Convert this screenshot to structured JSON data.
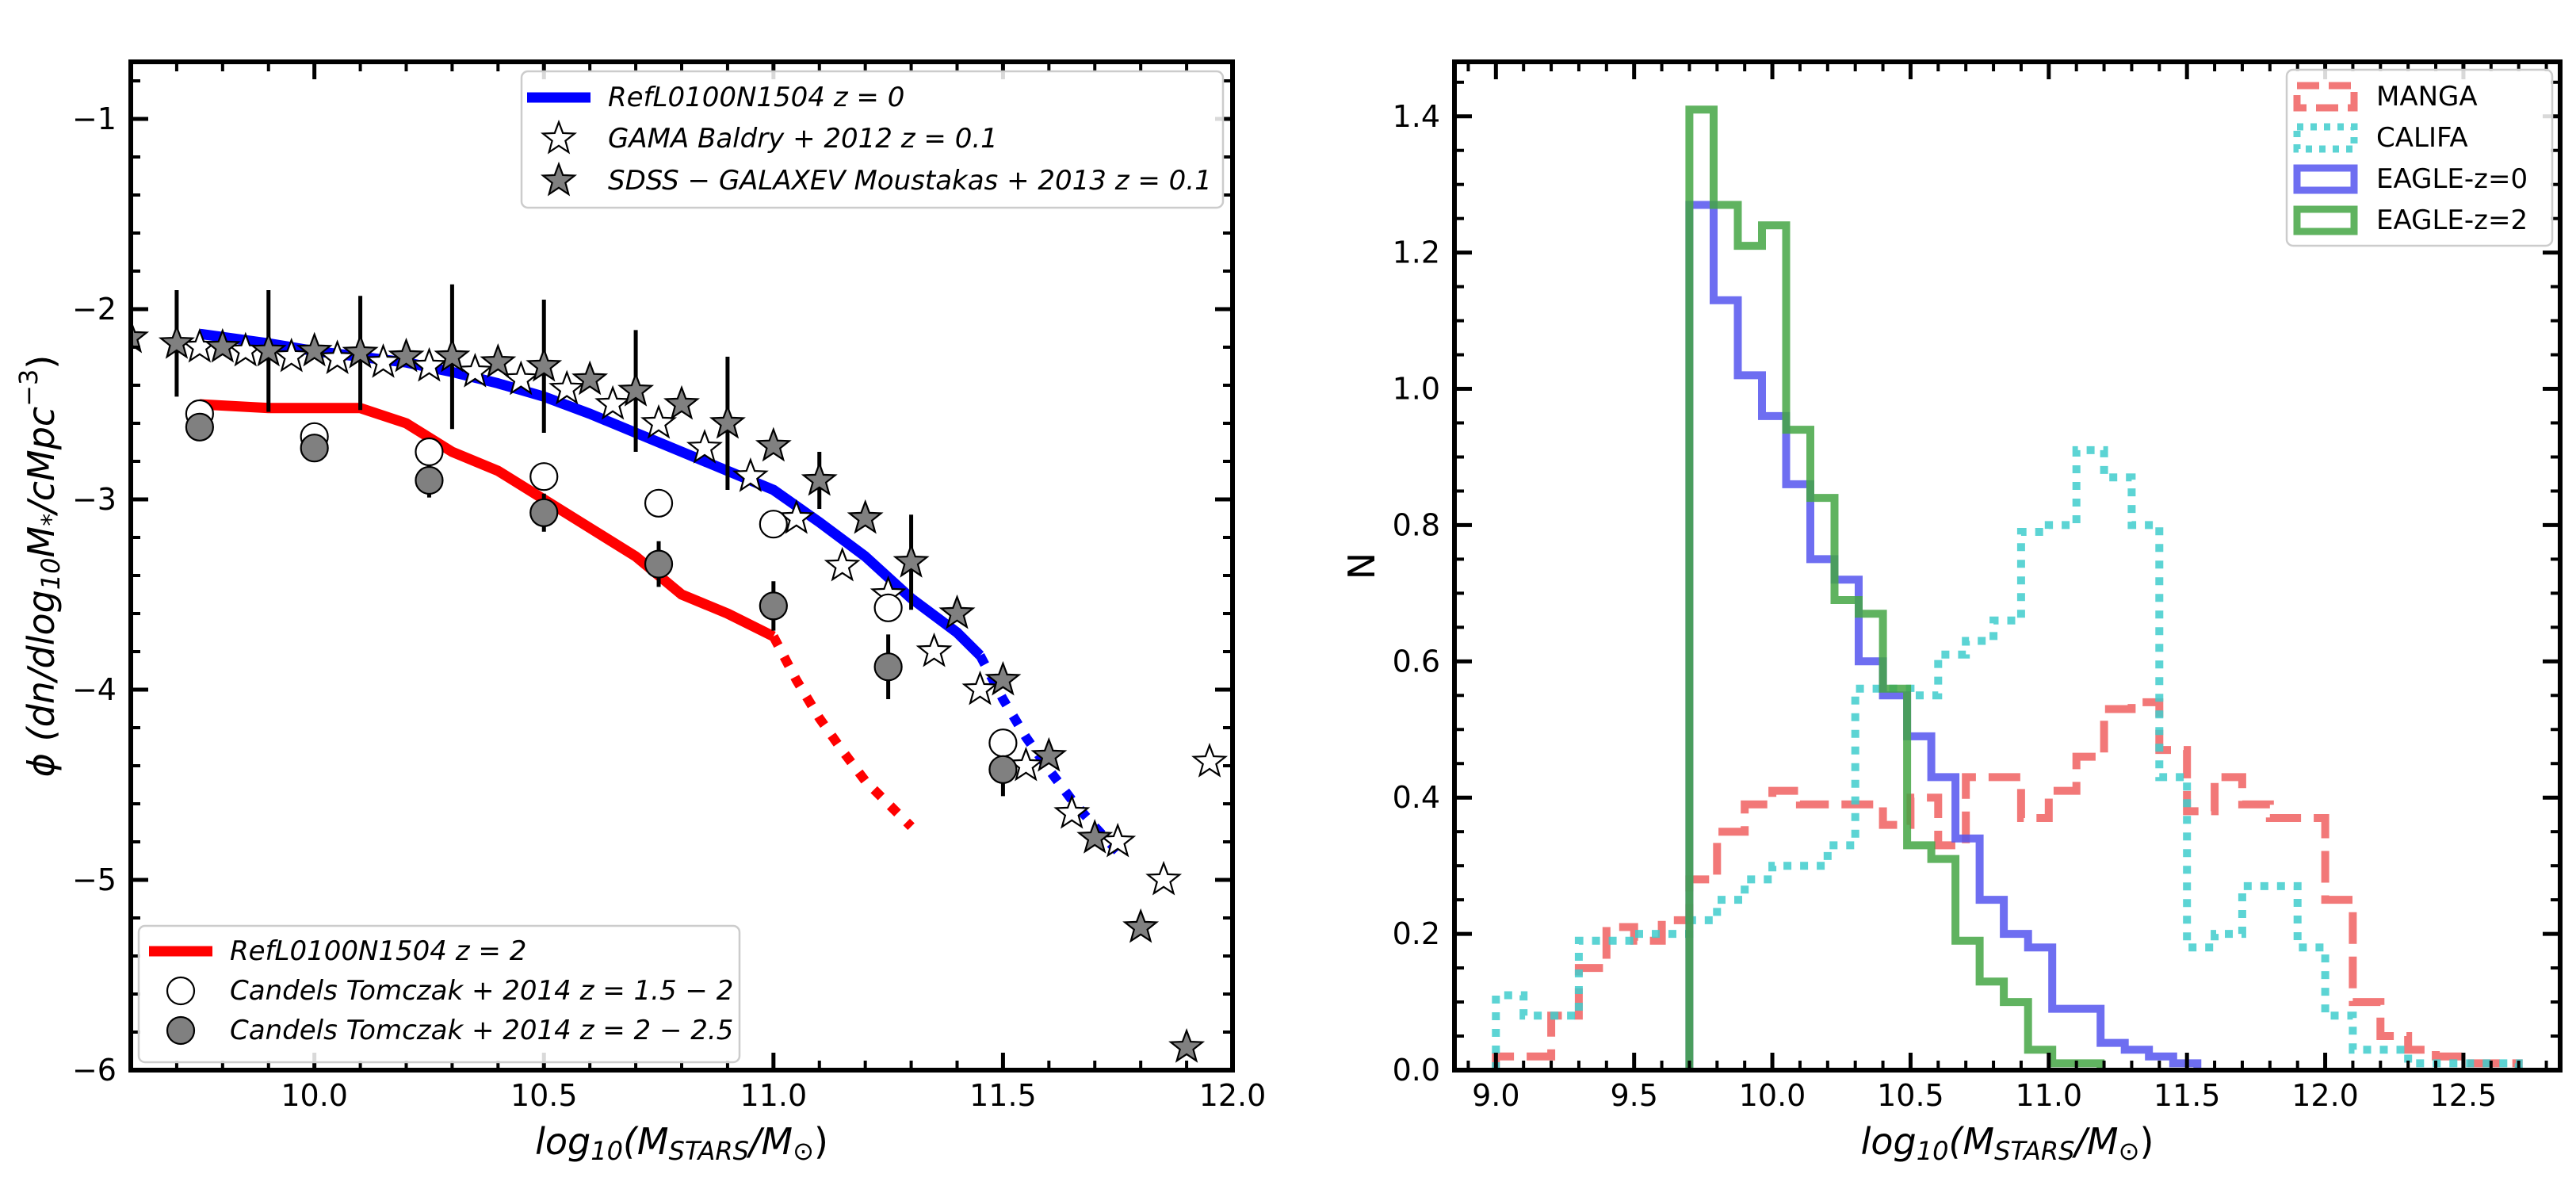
{
  "chart_data": [
    {
      "type": "line",
      "panel": "left",
      "xlabel": "log10(M_STARS/M_sun)",
      "ylabel": "phi (dn/dlog10 M*/cMpc^-3)",
      "xlim": [
        9.6,
        12.0
      ],
      "ylim": [
        -6,
        -0.7
      ],
      "xticks": [
        10.0,
        10.5,
        11.0,
        11.5,
        12.0
      ],
      "xtick_labels": [
        "10.0",
        "10.5",
        "11.0",
        "11.5",
        "12.0"
      ],
      "yticks": [
        -1,
        -2,
        -3,
        -4,
        -5,
        -6
      ],
      "ytick_labels": [
        "−1",
        "−2",
        "−3",
        "−4",
        "−5",
        "−6"
      ],
      "series": [
        {
          "name": "RefL0100N1504 z=0",
          "label_italic": "RefL0100N1504",
          "label_rest": " z = 0",
          "color": "#0000ff",
          "style": "line",
          "x": [
            9.75,
            9.9,
            10.0,
            10.1,
            10.2,
            10.3,
            10.4,
            10.5,
            10.6,
            10.7,
            10.8,
            10.9,
            11.0,
            11.1,
            11.2,
            11.3,
            11.4,
            11.45
          ],
          "y": [
            -2.13,
            -2.18,
            -2.22,
            -2.25,
            -2.28,
            -2.33,
            -2.39,
            -2.46,
            -2.55,
            -2.65,
            -2.75,
            -2.85,
            -2.95,
            -3.12,
            -3.3,
            -3.52,
            -3.7,
            -3.82
          ]
        },
        {
          "name": "RefL0100N1504 z=0 extension",
          "color": "#0000ff",
          "style": "dotted",
          "x": [
            11.45,
            11.5,
            11.55,
            11.6,
            11.65,
            11.7,
            11.75
          ],
          "y": [
            -3.82,
            -4.05,
            -4.25,
            -4.42,
            -4.58,
            -4.72,
            -4.85
          ]
        },
        {
          "name": "RefL0100N1504 z=2",
          "label_italic": "RefL0100N1504",
          "label_rest": " z = 2",
          "color": "#ff0000",
          "style": "line",
          "x": [
            9.75,
            9.9,
            10.0,
            10.1,
            10.2,
            10.3,
            10.4,
            10.5,
            10.6,
            10.7,
            10.8,
            10.9,
            11.0
          ],
          "y": [
            -2.5,
            -2.52,
            -2.52,
            -2.52,
            -2.6,
            -2.75,
            -2.85,
            -3.0,
            -3.15,
            -3.3,
            -3.5,
            -3.6,
            -3.72
          ]
        },
        {
          "name": "RefL0100N1504 z=2 extension",
          "color": "#ff0000",
          "style": "dotted",
          "x": [
            11.0,
            11.05,
            11.1,
            11.15,
            11.2,
            11.25,
            11.3
          ],
          "y": [
            -3.72,
            -3.95,
            -4.15,
            -4.32,
            -4.48,
            -4.6,
            -4.72
          ]
        },
        {
          "name": "GAMA Baldry+2012 z=0.1",
          "label_italic": "GAMA Baldry + 2012",
          "label_rest": " z = 0.1",
          "marker": "star-open",
          "x": [
            9.75,
            9.85,
            9.95,
            10.05,
            10.15,
            10.25,
            10.35,
            10.45,
            10.55,
            10.65,
            10.75,
            10.85,
            10.95,
            11.05,
            11.15,
            11.25,
            11.35,
            11.45,
            11.55,
            11.65,
            11.75,
            11.85,
            11.95
          ],
          "y": [
            -2.2,
            -2.22,
            -2.25,
            -2.26,
            -2.28,
            -2.3,
            -2.33,
            -2.37,
            -2.42,
            -2.5,
            -2.6,
            -2.73,
            -2.88,
            -3.1,
            -3.35,
            -3.5,
            -3.8,
            -4.0,
            -4.4,
            -4.65,
            -4.8,
            -5.0,
            -4.38
          ]
        },
        {
          "name": "SDSS-GALAXEV Moustakas+2013 z=0.1",
          "label_italic": "SDSS − GALAXEV Moustakas + 2013",
          "label_rest": " z = 0.1",
          "marker": "star-filled",
          "x": [
            9.6,
            9.7,
            9.8,
            9.9,
            10.0,
            10.1,
            10.2,
            10.3,
            10.4,
            10.5,
            10.6,
            10.7,
            10.8,
            10.9,
            11.0,
            11.1,
            11.2,
            11.3,
            11.4,
            11.5,
            11.6,
            11.7,
            11.8,
            11.9
          ],
          "y": [
            -2.15,
            -2.18,
            -2.2,
            -2.22,
            -2.22,
            -2.23,
            -2.25,
            -2.25,
            -2.28,
            -2.3,
            -2.37,
            -2.43,
            -2.5,
            -2.6,
            -2.72,
            -2.9,
            -3.1,
            -3.33,
            -3.6,
            -3.95,
            -4.35,
            -4.78,
            -5.25,
            -5.88
          ],
          "yerr": [
            0,
            0.28,
            0,
            0.32,
            0,
            0.3,
            0,
            0.38,
            0,
            0.35,
            0,
            0.32,
            0,
            0.35,
            0,
            0.15,
            0,
            0.25,
            0,
            0,
            0,
            0,
            0,
            0
          ]
        },
        {
          "name": "Candels Tomczak+2014 z=1.5-2",
          "label_italic": "Candels Tomczak + 2014",
          "label_rest": " z = 1.5 − 2",
          "marker": "circle-open",
          "x": [
            9.75,
            10.0,
            10.25,
            10.5,
            10.75,
            11.0,
            11.25,
            11.5
          ],
          "y": [
            -2.55,
            -2.67,
            -2.75,
            -2.88,
            -3.02,
            -3.13,
            -3.57,
            -4.28
          ]
        },
        {
          "name": "Candels Tomczak+2014 z=2-2.5",
          "label_italic": "Candels Tomczak + 2014",
          "label_rest": " z = 2 − 2.5",
          "marker": "circle-filled",
          "x": [
            9.75,
            10.0,
            10.25,
            10.5,
            10.75,
            11.0,
            11.25,
            11.5
          ],
          "y": [
            -2.62,
            -2.73,
            -2.9,
            -3.07,
            -3.34,
            -3.56,
            -3.88,
            -4.42
          ],
          "yerr": [
            0,
            0,
            0.09,
            0.1,
            0.12,
            0.13,
            0.17,
            0.14
          ]
        }
      ],
      "legend_upper": "upper-right",
      "legend_lower": "lower-left"
    },
    {
      "type": "histogram",
      "panel": "right",
      "xlabel": "log10(M_STARS/M_sun)",
      "ylabel": "N",
      "xlim": [
        8.85,
        12.85
      ],
      "ylim": [
        0,
        1.48
      ],
      "xticks": [
        9.0,
        9.5,
        10.0,
        10.5,
        11.0,
        11.5,
        12.0,
        12.5
      ],
      "xtick_labels": [
        "9.0",
        "9.5",
        "10.0",
        "10.5",
        "11.0",
        "11.5",
        "12.0",
        "12.5"
      ],
      "yticks": [
        0.0,
        0.2,
        0.4,
        0.6,
        0.8,
        1.0,
        1.2,
        1.4
      ],
      "ytick_labels": [
        "0.0",
        "0.2",
        "0.4",
        "0.6",
        "0.8",
        "1.0",
        "1.2",
        "1.4"
      ],
      "legend": "upper-right",
      "series": [
        {
          "name": "MANGA",
          "color": "#f06060",
          "style": "dashed",
          "start": 9.0,
          "width": 0.1,
          "values": [
            0.02,
            0.02,
            0.08,
            0.15,
            0.21,
            0.19,
            0.22,
            0.28,
            0.35,
            0.39,
            0.41,
            0.39,
            0.39,
            0.39,
            0.36,
            0.4,
            0.33,
            0.43,
            0.43,
            0.37,
            0.41,
            0.46,
            0.53,
            0.54,
            0.47,
            0.38,
            0.43,
            0.39,
            0.37,
            0.37,
            0.25,
            0.1,
            0.05,
            0.03,
            0.02,
            0.01,
            0.01
          ]
        },
        {
          "name": "CALIFA",
          "color": "#40cccc",
          "style": "dotted",
          "start": 9.0,
          "width": 0.1,
          "values": [
            0.11,
            0.08,
            0.08,
            0.19,
            0.19,
            0.2,
            0.2,
            0.22,
            0.25,
            0.28,
            0.3,
            0.3,
            0.33,
            0.56,
            0.56,
            0.55,
            0.61,
            0.63,
            0.66,
            0.79,
            0.8,
            0.91,
            0.87,
            0.8,
            0.43,
            0.18,
            0.2,
            0.27,
            0.27,
            0.18,
            0.08,
            0.03,
            0.03,
            0.01,
            0.01,
            0.01,
            0.01
          ]
        },
        {
          "name": "EAGLE-z=0",
          "color": "#5555ee",
          "style": "solid",
          "start": 9.7,
          "width": 0.0875,
          "values": [
            1.27,
            1.13,
            1.02,
            0.96,
            0.86,
            0.75,
            0.72,
            0.6,
            0.55,
            0.49,
            0.43,
            0.34,
            0.25,
            0.2,
            0.18,
            0.09,
            0.09,
            0.04,
            0.03,
            0.02,
            0.01
          ]
        },
        {
          "name": "EAGLE-z=2",
          "color": "#44a644",
          "style": "solid",
          "start": 9.7,
          "width": 0.0875,
          "values": [
            1.41,
            1.27,
            1.21,
            1.24,
            0.94,
            0.84,
            0.69,
            0.67,
            0.56,
            0.33,
            0.31,
            0.19,
            0.13,
            0.1,
            0.03,
            0.01,
            0.01
          ]
        }
      ]
    }
  ]
}
